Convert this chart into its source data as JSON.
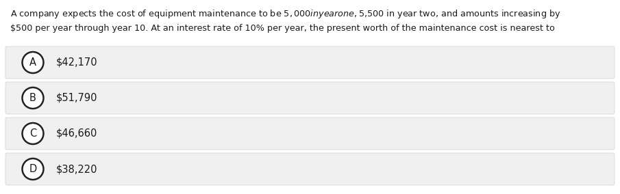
{
  "question_text_line1": "A company expects the cost of equipment maintenance to be $5,000 in year one, $5,500 in year two, and amounts increasing by",
  "question_text_line2": "$500 per year through year 10. At an interest rate of 10% per year, the present worth of the maintenance cost is nearest to",
  "options": [
    {
      "label": "A",
      "text": "$42,170"
    },
    {
      "label": "B",
      "text": "$51,790"
    },
    {
      "label": "C",
      "text": "$46,660"
    },
    {
      "label": "D",
      "text": "$38,220"
    }
  ],
  "background_color": "#ffffff",
  "option_box_color": "#f0f0f0",
  "option_box_border_color": "#d8d8d8",
  "circle_color": "#ffffff",
  "circle_border_color": "#222222",
  "text_color": "#1a1a1a",
  "question_fontsize": 9.2,
  "option_fontsize": 10.5,
  "label_fontsize": 10.5,
  "fig_width": 9.05,
  "fig_height": 2.84,
  "dpi": 100
}
